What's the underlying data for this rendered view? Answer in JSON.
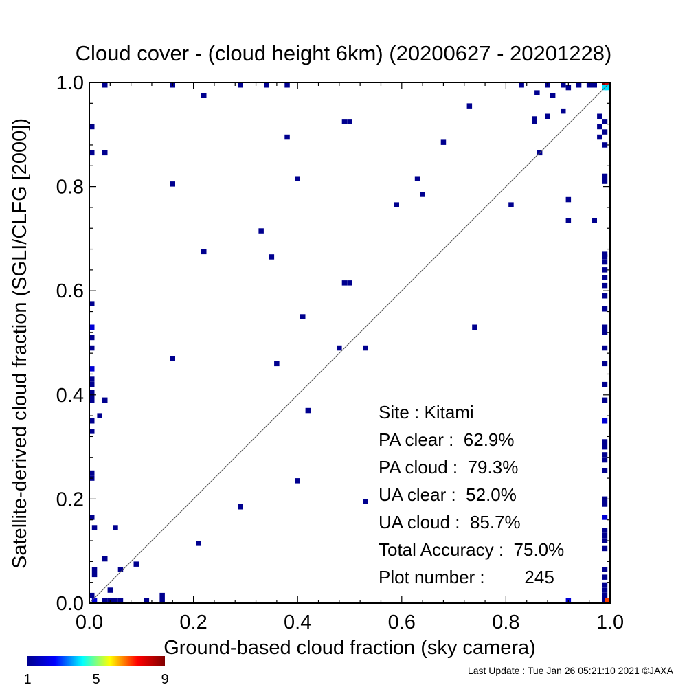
{
  "chart_data": {
    "type": "heatmap",
    "title": "Cloud cover - (cloud height 6km)  (20200627 - 20201228)",
    "xlabel": "Ground-based cloud fraction (sky camera)",
    "ylabel": "Satellite-derived cloud fraction (SGLI/CLFG [2000])",
    "xlim": [
      0,
      1
    ],
    "ylim": [
      0,
      1
    ],
    "x_tick_labels": [
      "0.0",
      "0.2",
      "0.4",
      "0.6",
      "0.8",
      "1.0"
    ],
    "y_tick_labels": [
      "0.0",
      "0.2",
      "0.4",
      "0.6",
      "0.8",
      "1.0"
    ],
    "reference_line": "y = x",
    "colorbar": {
      "min": 1,
      "max": 9,
      "tick_labels": [
        "1",
        "5",
        "9"
      ],
      "colors": [
        "#00008f",
        "#0000ff",
        "#00ffff",
        "#ffff00",
        "#ff0000",
        "#800000"
      ]
    },
    "stats": [
      {
        "label": "Site : Kitami"
      },
      {
        "label": "PA clear :  62.9%"
      },
      {
        "label": "PA cloud :  79.3%"
      },
      {
        "label": "UA clear :  52.0%"
      },
      {
        "label": "UA cloud :  85.7%"
      },
      {
        "label": "Total Accuracy :  75.0%"
      },
      {
        "label": "Plot number :        245"
      }
    ],
    "cells": [
      [
        0.03,
        1.0,
        1
      ],
      [
        0.16,
        1.0,
        1
      ],
      [
        0.29,
        1.0,
        1
      ],
      [
        0.34,
        1.0,
        1
      ],
      [
        0.38,
        1.0,
        1
      ],
      [
        0.83,
        1.0,
        1
      ],
      [
        0.88,
        1.0,
        1
      ],
      [
        0.91,
        1.0,
        1
      ],
      [
        0.94,
        1.0,
        1
      ],
      [
        0.96,
        1.0,
        1
      ],
      [
        0.97,
        1.0,
        1
      ],
      [
        0.99,
        1.0,
        9
      ],
      [
        1.0,
        1.0,
        8
      ],
      [
        0.99,
        0.99,
        4
      ],
      [
        1.0,
        0.99,
        4
      ],
      [
        0.92,
        0.99,
        1
      ],
      [
        0.22,
        0.975,
        1
      ],
      [
        0.89,
        0.975,
        1
      ],
      [
        0.73,
        0.955,
        1
      ],
      [
        0.86,
        0.98,
        1
      ],
      [
        0.91,
        0.945,
        1
      ],
      [
        0.0,
        0.915,
        1
      ],
      [
        0.49,
        0.925,
        1
      ],
      [
        0.5,
        0.925,
        1
      ],
      [
        0.855,
        0.93,
        1
      ],
      [
        0.855,
        0.925,
        1
      ],
      [
        0.88,
        0.935,
        1
      ],
      [
        0.98,
        0.935,
        1
      ],
      [
        0.99,
        0.925,
        1
      ],
      [
        0.98,
        0.915,
        1
      ],
      [
        0.98,
        0.895,
        1
      ],
      [
        0.99,
        0.905,
        1
      ],
      [
        0.38,
        0.895,
        1
      ],
      [
        0.68,
        0.885,
        1
      ],
      [
        0.99,
        0.88,
        1
      ],
      [
        0.0,
        0.865,
        1
      ],
      [
        0.03,
        0.865,
        1
      ],
      [
        0.865,
        0.865,
        1
      ],
      [
        0.4,
        0.815,
        1
      ],
      [
        0.63,
        0.815,
        1
      ],
      [
        0.16,
        0.805,
        1
      ],
      [
        0.99,
        0.82,
        1
      ],
      [
        0.99,
        0.81,
        1
      ],
      [
        0.64,
        0.785,
        1
      ],
      [
        0.59,
        0.765,
        1
      ],
      [
        0.81,
        0.765,
        1
      ],
      [
        0.92,
        0.775,
        1
      ],
      [
        0.92,
        0.735,
        1
      ],
      [
        0.97,
        0.735,
        1
      ],
      [
        0.33,
        0.715,
        1
      ],
      [
        0.22,
        0.675,
        1
      ],
      [
        0.35,
        0.665,
        1
      ],
      [
        0.99,
        0.67,
        1
      ],
      [
        0.99,
        0.665,
        1
      ],
      [
        0.99,
        0.655,
        1
      ],
      [
        0.99,
        0.64,
        1
      ],
      [
        0.49,
        0.615,
        1
      ],
      [
        0.5,
        0.615,
        1
      ],
      [
        0.99,
        0.625,
        1
      ],
      [
        0.99,
        0.61,
        1
      ],
      [
        0.99,
        0.59,
        1
      ],
      [
        0.0,
        0.575,
        1
      ],
      [
        0.99,
        0.565,
        1
      ],
      [
        0.41,
        0.55,
        1
      ],
      [
        0.74,
        0.53,
        1
      ],
      [
        0.0,
        0.53,
        2
      ],
      [
        0.99,
        0.53,
        1
      ],
      [
        0.99,
        0.52,
        1
      ],
      [
        0.0,
        0.51,
        1
      ],
      [
        0.0,
        0.49,
        1
      ],
      [
        0.48,
        0.49,
        1
      ],
      [
        0.53,
        0.49,
        1
      ],
      [
        0.99,
        0.49,
        1
      ],
      [
        0.16,
        0.47,
        1
      ],
      [
        0.36,
        0.46,
        1
      ],
      [
        0.99,
        0.46,
        1
      ],
      [
        0.0,
        0.45,
        2
      ],
      [
        0.0,
        0.43,
        1
      ],
      [
        0.0,
        0.42,
        1
      ],
      [
        0.0,
        0.405,
        1
      ],
      [
        0.0,
        0.395,
        1
      ],
      [
        0.0,
        0.39,
        1
      ],
      [
        0.03,
        0.39,
        1
      ],
      [
        0.99,
        0.42,
        1
      ],
      [
        0.99,
        0.39,
        1
      ],
      [
        0.42,
        0.37,
        1
      ],
      [
        0.02,
        0.36,
        1
      ],
      [
        0.0,
        0.35,
        1
      ],
      [
        0.99,
        0.35,
        2
      ],
      [
        0.0,
        0.33,
        1
      ],
      [
        0.99,
        0.31,
        1
      ],
      [
        0.99,
        0.3,
        1
      ],
      [
        0.99,
        0.285,
        1
      ],
      [
        0.99,
        0.275,
        1
      ],
      [
        0.0,
        0.25,
        1
      ],
      [
        0.0,
        0.24,
        1
      ],
      [
        0.99,
        0.255,
        1
      ],
      [
        0.4,
        0.235,
        1
      ],
      [
        0.99,
        0.2,
        1
      ],
      [
        0.53,
        0.195,
        1
      ],
      [
        0.29,
        0.185,
        1
      ],
      [
        0.99,
        0.19,
        1
      ],
      [
        0.99,
        0.165,
        2
      ],
      [
        0.0,
        0.165,
        1
      ],
      [
        0.01,
        0.145,
        1
      ],
      [
        0.05,
        0.145,
        1
      ],
      [
        0.99,
        0.14,
        1
      ],
      [
        0.99,
        0.13,
        1
      ],
      [
        0.21,
        0.115,
        1
      ],
      [
        0.99,
        0.12,
        1
      ],
      [
        0.99,
        0.105,
        1
      ],
      [
        0.03,
        0.085,
        1
      ],
      [
        0.09,
        0.075,
        1
      ],
      [
        0.06,
        0.065,
        1
      ],
      [
        0.01,
        0.065,
        1
      ],
      [
        0.01,
        0.055,
        1
      ],
      [
        0.99,
        0.065,
        1
      ],
      [
        0.99,
        0.05,
        1
      ],
      [
        0.99,
        0.035,
        1
      ],
      [
        0.04,
        0.025,
        1
      ],
      [
        0.0,
        0.015,
        1
      ],
      [
        0.14,
        0.015,
        1
      ],
      [
        0.99,
        0.015,
        1
      ],
      [
        0.99,
        0.025,
        1
      ],
      [
        0.01,
        0.0,
        2
      ],
      [
        0.03,
        0.0,
        1
      ],
      [
        0.04,
        0.0,
        1
      ],
      [
        0.05,
        0.0,
        1
      ],
      [
        0.06,
        0.0,
        1
      ],
      [
        0.11,
        0.0,
        1
      ],
      [
        0.14,
        0.0,
        1
      ],
      [
        0.92,
        0.0,
        2
      ],
      [
        0.99,
        0.0,
        1
      ],
      [
        1.0,
        0.0,
        7
      ]
    ]
  },
  "footer": {
    "last_update": "Last Update : Tue Jan 26 05:21:10 2021  ©JAXA"
  }
}
